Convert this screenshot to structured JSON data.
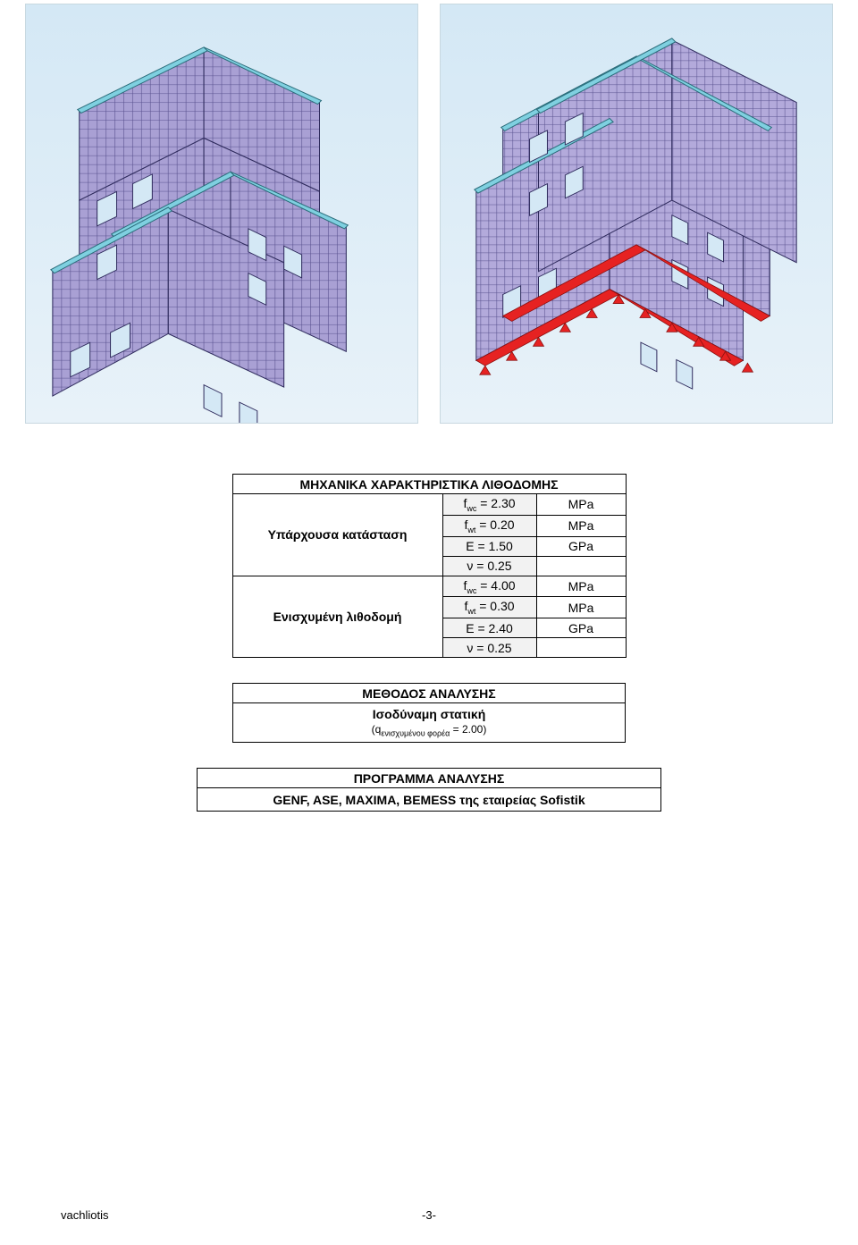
{
  "figures": {
    "bg_gradient_top": "#d4e8f5",
    "bg_gradient_bottom": "#e8f2f9",
    "wall_fill": "#a9a0d4",
    "wall_stroke": "#2e2a5c",
    "beam_fill": "#7fd0e0",
    "beam_stroke": "#2a6c7a",
    "base_fill": "#e62222",
    "base_stroke": "#8a1010"
  },
  "table1": {
    "title": "ΜΗΧΑΝΙΚΑ ΧΑΡΑΚΤΗΡΙΣΤΙΚΑ ΛΙΘΟΔΟΜΗΣ",
    "group1_label": "Υπάρχουσα κατάσταση",
    "group2_label": "Ενισχυμένη λιθοδομή",
    "rows": [
      {
        "sym_html": "f<sub class='sub'>wc</sub> = 2.30",
        "unit": "MPa"
      },
      {
        "sym_html": "f<sub class='sub'>wt</sub> = 0.20",
        "unit": "MPa"
      },
      {
        "sym_html": "E = 1.50",
        "unit": "GPa"
      },
      {
        "sym_html": "ν = 0.25",
        "unit": ""
      },
      {
        "sym_html": "f<sub class='sub'>wc</sub> = 4.00",
        "unit": "MPa"
      },
      {
        "sym_html": "f<sub class='sub'>wt</sub> = 0.30",
        "unit": "MPa"
      },
      {
        "sym_html": "E = 2.40",
        "unit": "GPa"
      },
      {
        "sym_html": "ν = 0.25",
        "unit": ""
      }
    ]
  },
  "table2": {
    "title": "ΜΕΘΟΔΟΣ ΑΝΑΛΥΣΗΣ",
    "line1": "Ισοδύναμη στατική",
    "line2_html": "(q<sub class='sub'>ενισχυμένου φορέα</sub> = 2.00)"
  },
  "table3": {
    "title": "ΠΡΟΓΡΑΜΜΑ ΑΝΑΛΥΣΗΣ",
    "body": "GENF, ASE, MAXIMA, BEMESS της εταιρείας Sofistik"
  },
  "footer": {
    "left": "vachliotis",
    "page": "-3-"
  }
}
